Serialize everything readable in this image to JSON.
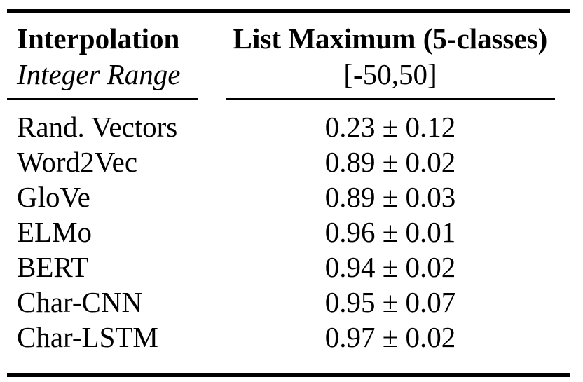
{
  "table": {
    "header": {
      "col1_line1": "Interpolation",
      "col1_line2": "Integer Range",
      "col2_line1": "List Maximum (5-classes)",
      "col2_line2": "[-50,50]"
    },
    "rows": [
      {
        "label": "Rand. Vectors",
        "value": "0.23 ± 0.12"
      },
      {
        "label": "Word2Vec",
        "value": "0.89 ± 0.02"
      },
      {
        "label": "GloVe",
        "value": "0.89 ± 0.03"
      },
      {
        "label": "ELMo",
        "value": "0.96 ± 0.01"
      },
      {
        "label": "BERT",
        "value": "0.94 ± 0.02"
      },
      {
        "label": "Char-CNN",
        "value": "0.95 ± 0.07"
      },
      {
        "label": "Char-LSTM",
        "value": "0.97 ± 0.02"
      }
    ],
    "colors": {
      "rule": "#000000",
      "text": "#000000",
      "background": "#ffffff"
    }
  }
}
